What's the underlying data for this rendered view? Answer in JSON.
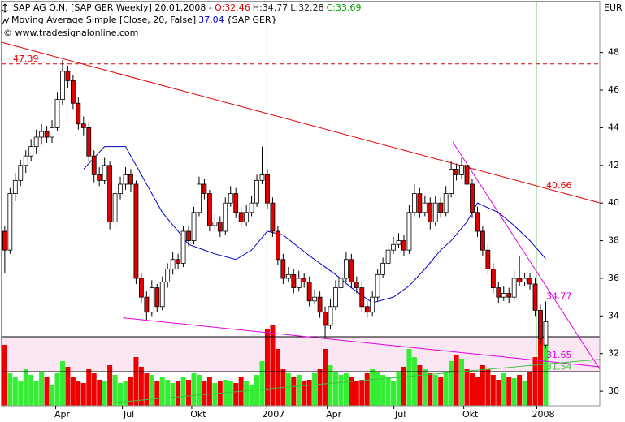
{
  "chart_data": {
    "type": "candlestick",
    "title": "SAP AG O.N. [SAP GER  Weekly] 20.01.2008 -",
    "quote": [
      {
        "text": "O:32.46",
        "color": "#e00000"
      },
      {
        "text": "H:34.77",
        "color": "#202020"
      },
      {
        "text": "L:32.28",
        "color": "#202020"
      },
      {
        "text": "C:33.69",
        "color": "#00a000"
      }
    ],
    "indicator": {
      "name": "Moving Average Simple [Close, 20, False]",
      "last_label": "37.04",
      "source": "{SAP GER}",
      "color": "#0000cc",
      "x": [
        15,
        19,
        23,
        26,
        30,
        33,
        35,
        40,
        44,
        47,
        50,
        53,
        58,
        63,
        66,
        70,
        74,
        77,
        80,
        83,
        85,
        88,
        90,
        94,
        97,
        100,
        103
      ],
      "values": [
        41.8,
        43,
        43,
        41.5,
        39.5,
        38.5,
        37.8,
        37.3,
        37,
        37.5,
        38.5,
        38.3,
        37.2,
        36.2,
        35.5,
        34.7,
        35,
        35.6,
        36.5,
        37.5,
        38,
        39,
        40,
        39.5,
        38.8,
        38,
        37.04
      ]
    },
    "copyright": "© www.tradesignalonline.com",
    "currency": "EUR",
    "up_color": "#ffffff",
    "down_color": "#e00000",
    "candles": [
      [
        38.5,
        38.8,
        36.3,
        37.5
      ],
      [
        37.5,
        40.8,
        37.3,
        40.5
      ],
      [
        40.5,
        41.6,
        40.1,
        41.2
      ],
      [
        41.2,
        42.3,
        40.9,
        42
      ],
      [
        42,
        42.8,
        41.6,
        42.5
      ],
      [
        42.5,
        43.4,
        42.2,
        43
      ],
      [
        43,
        43.9,
        42.6,
        43.5
      ],
      [
        43.5,
        44.2,
        43.1,
        43.8
      ],
      [
        43.8,
        44.1,
        43.2,
        43.5
      ],
      [
        43.5,
        44.4,
        43.2,
        44
      ],
      [
        44,
        45.9,
        43.8,
        45.5
      ],
      [
        45.5,
        47.6,
        45.2,
        47
      ],
      [
        47,
        47.3,
        46.1,
        46.5
      ],
      [
        46.5,
        46.8,
        45,
        45.3
      ],
      [
        45.3,
        45.6,
        43.9,
        44.2
      ],
      [
        44.2,
        44.6,
        43.6,
        44
      ],
      [
        44,
        44.3,
        42.2,
        42.5
      ],
      [
        42.5,
        42.8,
        41.1,
        41.5
      ],
      [
        41.5,
        41.9,
        40.9,
        41.2
      ],
      [
        41.2,
        42.4,
        41,
        42
      ],
      [
        42,
        42.2,
        38.6,
        39
      ],
      [
        39,
        40.8,
        38.7,
        40.5
      ],
      [
        40.5,
        41.4,
        40.2,
        41
      ],
      [
        41,
        41.9,
        40.7,
        41.5
      ],
      [
        41.5,
        41.8,
        40.6,
        41
      ],
      [
        41,
        41.2,
        35.7,
        36
      ],
      [
        36,
        36.3,
        34.7,
        35
      ],
      [
        35,
        35.3,
        33.8,
        34.2
      ],
      [
        34.2,
        35.9,
        34,
        35.5
      ],
      [
        35.5,
        35.7,
        34.2,
        34.5
      ],
      [
        34.5,
        36.1,
        34.3,
        35.8
      ],
      [
        35.8,
        36.8,
        35.5,
        36.5
      ],
      [
        36.5,
        37.4,
        36.2,
        37
      ],
      [
        37,
        37.3,
        36.5,
        36.8
      ],
      [
        36.8,
        38.8,
        36.6,
        38.5
      ],
      [
        38.5,
        38.8,
        37.7,
        38
      ],
      [
        38,
        39.8,
        37.8,
        39.5
      ],
      [
        39.5,
        41.4,
        39.3,
        41
      ],
      [
        41,
        41.3,
        40.2,
        40.5
      ],
      [
        40.5,
        40.7,
        38.5,
        38.8
      ],
      [
        38.8,
        39.4,
        38.6,
        39
      ],
      [
        39,
        39.3,
        38.2,
        38.5
      ],
      [
        38.5,
        40.3,
        38.3,
        40
      ],
      [
        40,
        40.9,
        39.8,
        40.5
      ],
      [
        40.5,
        40.8,
        39.2,
        39.5
      ],
      [
        39.5,
        39.8,
        38.7,
        39
      ],
      [
        39,
        39.9,
        38.8,
        39.5
      ],
      [
        39.5,
        40.4,
        39.3,
        40
      ],
      [
        40,
        41.5,
        39.8,
        41.2
      ],
      [
        41.2,
        43,
        41,
        41.5
      ],
      [
        41.5,
        41.8,
        39.7,
        40
      ],
      [
        40,
        40.3,
        38.2,
        38.5
      ],
      [
        38.5,
        38.8,
        36.7,
        37
      ],
      [
        37,
        37.3,
        35.7,
        36
      ],
      [
        36,
        36.6,
        35.8,
        36.2
      ],
      [
        36.2,
        36.5,
        35.2,
        35.5
      ],
      [
        35.5,
        36.4,
        35.3,
        36
      ],
      [
        36,
        36.3,
        35.5,
        35.8
      ],
      [
        35.8,
        36.1,
        34.5,
        34.8
      ],
      [
        34.8,
        35.4,
        34.6,
        35
      ],
      [
        35,
        35.3,
        33.9,
        34.2
      ],
      [
        34.2,
        34.5,
        32.8,
        33.5
      ],
      [
        33.5,
        34.9,
        33.3,
        34.5
      ],
      [
        34.5,
        35.9,
        34.3,
        35.5
      ],
      [
        35.5,
        36.4,
        35.3,
        36
      ],
      [
        36,
        37.4,
        35.8,
        37
      ],
      [
        37,
        37.3,
        35.5,
        35.8
      ],
      [
        35.8,
        36.1,
        35.2,
        35.5
      ],
      [
        35.5,
        35.8,
        34.2,
        34.5
      ],
      [
        34.5,
        34.8,
        33.9,
        34.2
      ],
      [
        34.2,
        35.3,
        34,
        35
      ],
      [
        35,
        36.5,
        34.8,
        36.2
      ],
      [
        36.2,
        37.1,
        36,
        36.8
      ],
      [
        36.8,
        37.9,
        36.6,
        37.5
      ],
      [
        37.5,
        38.2,
        37.3,
        37.8
      ],
      [
        37.8,
        38.4,
        37.6,
        38
      ],
      [
        38,
        38.3,
        37.2,
        37.5
      ],
      [
        37.5,
        39.9,
        37.3,
        39.5
      ],
      [
        39.5,
        41,
        39.3,
        40.5
      ],
      [
        40.5,
        40.8,
        39.2,
        39.5
      ],
      [
        39.5,
        40.4,
        39.3,
        40
      ],
      [
        40,
        40.3,
        38.6,
        39
      ],
      [
        39,
        40.4,
        38.8,
        40
      ],
      [
        40,
        40.3,
        39.2,
        39.5
      ],
      [
        39.5,
        40.9,
        39.3,
        40.5
      ],
      [
        40.5,
        42.2,
        40.3,
        41.8
      ],
      [
        41.8,
        42.1,
        41.2,
        41.5
      ],
      [
        41.5,
        42.4,
        41.3,
        42
      ],
      [
        42,
        42.3,
        40.7,
        41
      ],
      [
        41,
        41.3,
        39.2,
        39.5
      ],
      [
        39.5,
        39.8,
        38.2,
        38.5
      ],
      [
        38.5,
        38.8,
        37.2,
        37.5
      ],
      [
        37.5,
        37.8,
        36.2,
        36.5
      ],
      [
        36.5,
        36.8,
        35.2,
        35.5
      ],
      [
        35.5,
        35.8,
        34.7,
        35
      ],
      [
        35,
        35.6,
        34.8,
        35.2
      ],
      [
        35.2,
        35.5,
        34.7,
        35
      ],
      [
        35,
        36.4,
        34.8,
        36
      ],
      [
        36,
        37.2,
        35.6,
        35.8
      ],
      [
        35.8,
        36.3,
        35.6,
        36
      ],
      [
        36,
        36.3,
        35.4,
        35.7
      ],
      [
        35.7,
        36,
        34,
        34.3
      ],
      [
        34.3,
        34.6,
        32.5,
        32.8
      ],
      [
        32.46,
        34.77,
        32.28,
        33.69
      ]
    ],
    "volume": {
      "up_color": "#33ee33",
      "down_color": "#ee0000",
      "ylim": [
        0,
        100
      ],
      "values": [
        75,
        40,
        35,
        30,
        45,
        38,
        30,
        42,
        36,
        25,
        40,
        55,
        48,
        35,
        30,
        28,
        45,
        40,
        32,
        30,
        50,
        38,
        28,
        30,
        35,
        60,
        48,
        40,
        38,
        30,
        35,
        32,
        28,
        30,
        36,
        32,
        40,
        38,
        30,
        35,
        28,
        30,
        32,
        30,
        28,
        35,
        30,
        26,
        38,
        55,
        95,
        100,
        70,
        45,
        40,
        35,
        38,
        30,
        32,
        40,
        45,
        70,
        50,
        42,
        38,
        40,
        35,
        30,
        32,
        40,
        45,
        42,
        38,
        35,
        30,
        42,
        48,
        70,
        60,
        50,
        45,
        40,
        38,
        35,
        42,
        55,
        62,
        58,
        45,
        40,
        35,
        50,
        45,
        38,
        32,
        40,
        36,
        34,
        38,
        30,
        42,
        60,
        85,
        75
      ]
    },
    "xlim": [
      -0.6,
      113.3
    ],
    "ylim": [
      29.23,
      50.7
    ],
    "yticks": [
      30,
      32,
      34,
      36,
      38,
      40,
      42,
      44,
      46,
      48
    ],
    "xticks": [
      {
        "value": 9.7,
        "label": "Apr"
      },
      {
        "value": 22.4,
        "label": "Jul"
      },
      {
        "value": 35.6,
        "label": "Okt"
      },
      {
        "value": 49.9,
        "label": "2007",
        "major": true
      },
      {
        "value": 61.4,
        "label": "Apr"
      },
      {
        "value": 74.1,
        "label": "Jul"
      },
      {
        "value": 87.4,
        "label": "Okt"
      },
      {
        "value": 101.3,
        "label": "2008",
        "major": true
      }
    ],
    "trendlines": [
      {
        "x": [
          -0.6,
          113.3
        ],
        "values": [
          48.54,
          40.01
        ],
        "color": "#e00000"
      },
      {
        "x": [
          -0.6,
          113.3
        ],
        "values": [
          47.39,
          47.39
        ],
        "color": "#e00000",
        "dash": true
      },
      {
        "x": [
          22.5,
          113.3
        ],
        "values": [
          33.9,
          31.3
        ],
        "color": "#e000e0"
      },
      {
        "x": [
          85.3,
          113.3
        ],
        "values": [
          43.24,
          31.17
        ],
        "color": "#e000e0"
      },
      {
        "x": [
          21,
          113.3
        ],
        "values": [
          29.4,
          31.7
        ],
        "color": "#40c040"
      }
    ],
    "annotations": [
      {
        "label": "47.39",
        "value": 47.39,
        "color": "#e00000",
        "anchor": "left-above"
      },
      {
        "label": "40.66",
        "value": 40.66,
        "color": "#e00000",
        "anchor": "right-above"
      },
      {
        "label": "34.77",
        "value": 34.77,
        "color": "#e000e0",
        "anchor": "right-above"
      },
      {
        "label": "31.65",
        "value": 31.65,
        "color": "#e000e0",
        "anchor": "right-above"
      },
      {
        "label": "31.54",
        "value": 31.54,
        "color": "#40c040",
        "anchor": "right-below"
      }
    ]
  }
}
